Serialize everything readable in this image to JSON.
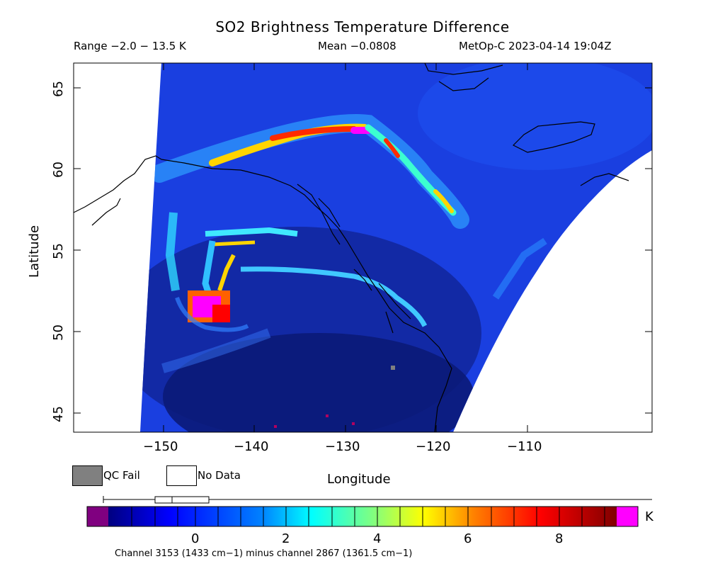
{
  "title": "SO2 Brightness Temperature Difference",
  "range_text": "Range −2.0 − 13.5 K",
  "mean_text": "Mean −0.0808",
  "sat_text": "MetOp-C 2023-04-14 19:04Z",
  "axes": {
    "xlabel": "Longitude",
    "ylabel": "Latitude",
    "x_ticks": [
      "−150",
      "−140",
      "−130",
      "−120",
      "−110"
    ],
    "y_ticks": [
      "65",
      "60",
      "55",
      "50",
      "45"
    ]
  },
  "legend": {
    "qc_fail_label": "QC Fail",
    "no_data_label": "No Data",
    "qc_fail_color": "#808080",
    "no_data_color": "#ffffff"
  },
  "colorbar": {
    "ticks": [
      "0",
      "2",
      "4",
      "6",
      "8"
    ],
    "unit": "K",
    "under_color": "#800080",
    "over_color": "#ff00ff"
  },
  "footer": "Channel 3153 (1433 cm−1) minus channel 2867 (1361.5 cm−1)",
  "chart_data": {
    "type": "heatmap",
    "xlim": [
      -156.5,
      -104.5
    ],
    "ylim": [
      43.8,
      66.5
    ],
    "colorbar_range": [
      -2,
      9.2
    ],
    "data_range": [
      -2.0,
      13.5
    ],
    "mean": -0.0808
  }
}
